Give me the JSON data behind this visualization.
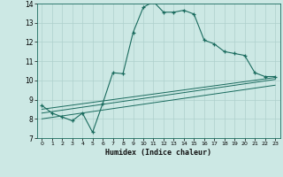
{
  "xlabel": "Humidex (Indice chaleur)",
  "bg_color": "#cce8e4",
  "line_color": "#1a6b5e",
  "grid_color": "#aed0cc",
  "xlim": [
    -0.5,
    23.5
  ],
  "ylim": [
    7,
    14
  ],
  "xticks": [
    0,
    1,
    2,
    3,
    4,
    5,
    6,
    7,
    8,
    9,
    10,
    11,
    12,
    13,
    14,
    15,
    16,
    17,
    18,
    19,
    20,
    21,
    22,
    23
  ],
  "yticks": [
    7,
    8,
    9,
    10,
    11,
    12,
    13,
    14
  ],
  "line1_x": [
    0,
    1,
    2,
    3,
    4,
    5,
    6,
    7,
    8,
    9,
    10,
    11,
    12,
    13,
    14,
    15,
    16,
    17,
    18,
    19,
    20,
    21,
    22,
    23
  ],
  "line1_y": [
    8.7,
    8.3,
    8.1,
    7.9,
    8.3,
    7.3,
    8.8,
    10.4,
    10.35,
    12.5,
    13.8,
    14.1,
    13.55,
    13.55,
    13.65,
    13.45,
    12.1,
    11.9,
    11.5,
    11.4,
    11.3,
    10.4,
    10.2,
    10.2
  ],
  "line2_x": [
    0,
    23
  ],
  "line2_y": [
    8.5,
    10.15
  ],
  "line3_x": [
    0,
    23
  ],
  "line3_y": [
    8.3,
    10.05
  ],
  "line4_x": [
    0,
    23
  ],
  "line4_y": [
    8.0,
    9.75
  ]
}
